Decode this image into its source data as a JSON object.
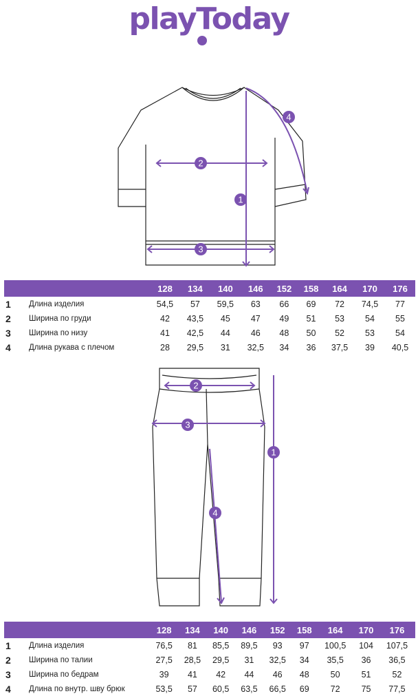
{
  "brand": {
    "logo": "playToday",
    "color": "#7b52b0"
  },
  "colors": {
    "accent": "#7b52b0",
    "line": "#222222"
  },
  "shirt_table": {
    "sizes": [
      "128",
      "134",
      "140",
      "146",
      "152",
      "158",
      "164",
      "170",
      "176"
    ],
    "rows": [
      {
        "n": "1",
        "label": "Длина изделия",
        "values": [
          "54,5",
          "57",
          "59,5",
          "63",
          "66",
          "69",
          "72",
          "74,5",
          "77"
        ]
      },
      {
        "n": "2",
        "label": "Ширина по груди",
        "values": [
          "42",
          "43,5",
          "45",
          "47",
          "49",
          "51",
          "53",
          "54",
          "55"
        ]
      },
      {
        "n": "3",
        "label": "Ширина по низу",
        "values": [
          "41",
          "42,5",
          "44",
          "46",
          "48",
          "50",
          "52",
          "53",
          "54"
        ]
      },
      {
        "n": "4",
        "label": "Длина рукава с плечом",
        "values": [
          "28",
          "29,5",
          "31",
          "32,5",
          "34",
          "36",
          "37,5",
          "39",
          "40,5"
        ]
      }
    ]
  },
  "pants_table": {
    "sizes": [
      "128",
      "134",
      "140",
      "146",
      "152",
      "158",
      "164",
      "170",
      "176"
    ],
    "rows": [
      {
        "n": "1",
        "label": "Длина изделия",
        "values": [
          "76,5",
          "81",
          "85,5",
          "89,5",
          "93",
          "97",
          "100,5",
          "104",
          "107,5"
        ]
      },
      {
        "n": "2",
        "label": "Ширина по талии",
        "values": [
          "27,5",
          "28,5",
          "29,5",
          "31",
          "32,5",
          "34",
          "35,5",
          "36",
          "36,5"
        ]
      },
      {
        "n": "3",
        "label": "Ширина по бедрам",
        "values": [
          "39",
          "41",
          "42",
          "44",
          "46",
          "48",
          "50",
          "51",
          "52"
        ]
      },
      {
        "n": "4",
        "label": "Длина по внутр. шву брюк",
        "values": [
          "53,5",
          "57",
          "60,5",
          "63,5",
          "66,5",
          "69",
          "72",
          "75",
          "77,5"
        ]
      }
    ]
  },
  "markers": {
    "shirt": [
      "1",
      "2",
      "3",
      "4"
    ],
    "pants": [
      "1",
      "2",
      "3",
      "4"
    ]
  }
}
